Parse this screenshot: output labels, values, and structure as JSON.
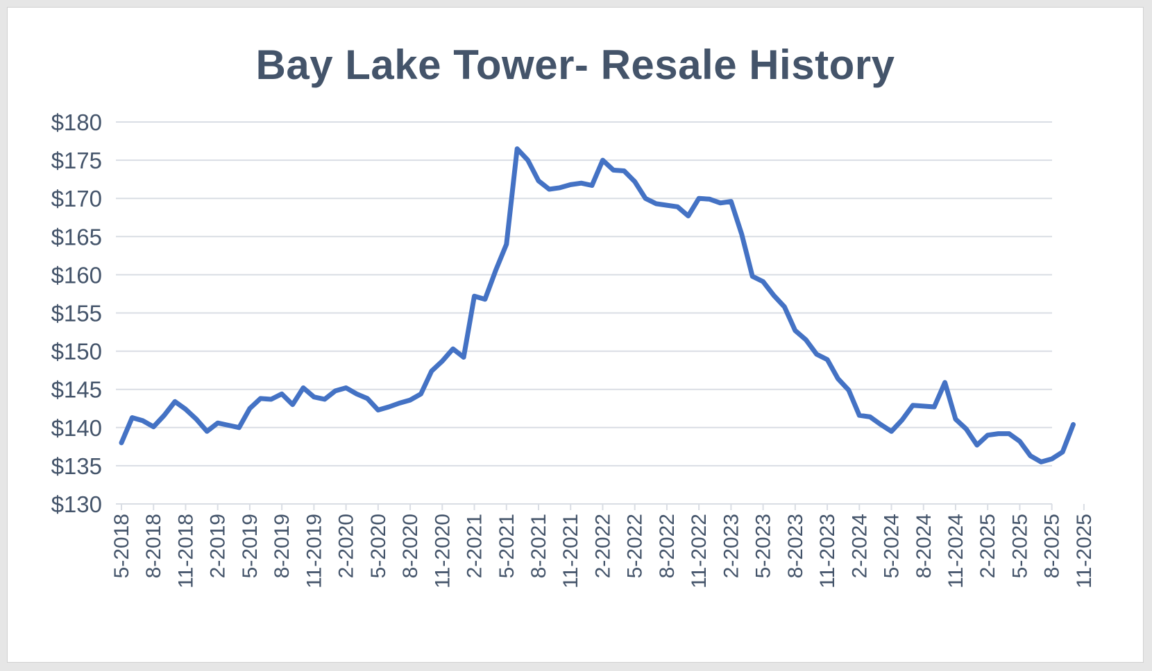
{
  "chart_data": {
    "type": "line",
    "title": "Bay Lake Tower- Resale History",
    "xlabel": "",
    "ylabel": "",
    "ylim": [
      130,
      180
    ],
    "y_ticks": [
      "$130",
      "$135",
      "$140",
      "$145",
      "$150",
      "$155",
      "$160",
      "$165",
      "$170",
      "$175",
      "$180"
    ],
    "x_tick_labels": [
      "5-2018",
      "8-2018",
      "11-2018",
      "2-2019",
      "5-2019",
      "8-2019",
      "11-2019",
      "2-2020",
      "5-2020",
      "8-2020",
      "11-2020",
      "2-2021",
      "5-2021",
      "8-2021",
      "11-2021",
      "2-2022",
      "5-2022",
      "8-2022",
      "11-2022",
      "2-2023",
      "5-2023",
      "8-2023",
      "11-2023",
      "2-2024",
      "5-2024",
      "8-2024",
      "11-2024",
      "2-2025",
      "5-2025",
      "8-2025",
      "11-2025"
    ],
    "grid": true,
    "line_color": "#4472c4",
    "series": [
      {
        "name": "Bay Lake Tower",
        "values": [
          138.0,
          141.3,
          140.9,
          140.1,
          141.6,
          143.4,
          142.4,
          141.1,
          139.5,
          140.6,
          140.3,
          140.0,
          142.5,
          143.8,
          143.7,
          144.4,
          143.0,
          145.2,
          144.0,
          143.7,
          144.8,
          145.2,
          144.4,
          143.8,
          142.3,
          142.7,
          143.2,
          143.6,
          144.4,
          147.4,
          148.7,
          150.3,
          149.2,
          157.2,
          156.8,
          160.6,
          164.0,
          176.5,
          175.0,
          172.3,
          171.2,
          171.4,
          171.8,
          172.0,
          171.7,
          175.0,
          173.7,
          173.6,
          172.2,
          170.0,
          169.3,
          169.1,
          168.9,
          167.7,
          170.0,
          169.9,
          169.4,
          169.6,
          165.3,
          159.8,
          159.1,
          157.3,
          155.8,
          152.7,
          151.5,
          149.6,
          148.9,
          146.4,
          144.9,
          141.6,
          141.4,
          140.4,
          139.5,
          141.0,
          142.9,
          142.8,
          142.7,
          145.9,
          141.1,
          139.8,
          137.7,
          139.0,
          139.2,
          139.2,
          138.2,
          136.3,
          135.5,
          135.9,
          136.8,
          140.4
        ]
      }
    ]
  }
}
